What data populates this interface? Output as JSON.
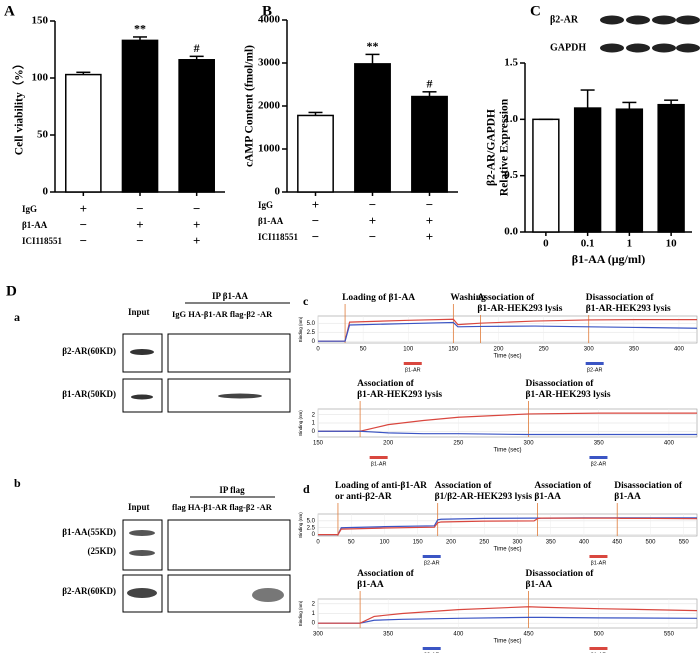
{
  "chart_data": [
    {
      "type": "bar",
      "panel": "A",
      "ylabel": "Cell viability（%）",
      "categories": [
        null,
        null,
        null
      ],
      "values": [
        103,
        133,
        116
      ],
      "errors": [
        2,
        3,
        3
      ],
      "bar_labels": [
        null,
        "**",
        "#"
      ],
      "colors": [
        "#ffffff",
        "#000000",
        "#000000"
      ],
      "ylim": [
        0,
        150
      ],
      "yticks": [
        0,
        50,
        100,
        150
      ],
      "treatments": [
        {
          "name": "IgG",
          "signs": [
            "+",
            "−",
            "−"
          ]
        },
        {
          "name": "β1-AA",
          "signs": [
            "−",
            "+",
            "+"
          ]
        },
        {
          "name": "ICI118551",
          "signs": [
            "−",
            "−",
            "+"
          ]
        }
      ]
    },
    {
      "type": "bar",
      "panel": "B",
      "ylabel": "cAMP Content (fmol/ml)",
      "categories": [
        null,
        null,
        null
      ],
      "values": [
        1780,
        2980,
        2220
      ],
      "errors": [
        70,
        220,
        110
      ],
      "bar_labels": [
        null,
        "**",
        "#"
      ],
      "colors": [
        "#ffffff",
        "#000000",
        "#000000"
      ],
      "ylim": [
        0,
        4000
      ],
      "yticks": [
        0,
        1000,
        2000,
        3000,
        4000
      ],
      "treatments": [
        {
          "name": "IgG",
          "signs": [
            "+",
            "−",
            "−"
          ]
        },
        {
          "name": "β1-AA",
          "signs": [
            "−",
            "+",
            "+"
          ]
        },
        {
          "name": "ICI118551",
          "signs": [
            "−",
            "−",
            "+"
          ]
        }
      ]
    },
    {
      "type": "bar",
      "panel": "C",
      "ylabel": [
        "β2-AR/GAPDH",
        "Relative Expression"
      ],
      "xlabel": "β1-AA (μg/ml)",
      "categories": [
        "0",
        "0.1",
        "1",
        "10"
      ],
      "values": [
        1.0,
        1.1,
        1.09,
        1.13
      ],
      "errors": [
        0,
        0.16,
        0.06,
        0.04
      ],
      "colors": [
        "#ffffff",
        "#000000",
        "#000000",
        "#000000"
      ],
      "ylim": [
        0,
        1.5
      ],
      "yticks": [
        {
          "value": 0,
          "label": "0.0"
        },
        0.5,
        {
          "value": 1,
          "label": "1.0"
        },
        1.5
      ],
      "blots": [
        "β2-AR",
        "GAPDH"
      ]
    },
    {
      "type": "line",
      "panel": "c",
      "xlabel": "Time (sec)",
      "ylabel": "Binding (nm)",
      "x": [
        0,
        30,
        35,
        100,
        150,
        155,
        180,
        240,
        300,
        360,
        420
      ],
      "series": [
        {
          "name": "β1-AR",
          "color": "#d9473f",
          "values": [
            0,
            0,
            5.3,
            5.8,
            6.1,
            4.6,
            5.0,
            5.6,
            5.9,
            6.0,
            6.0
          ]
        },
        {
          "name": "β2-AR",
          "color": "#3b55c4",
          "values": [
            0,
            0,
            4.5,
            4.9,
            5.2,
            4.0,
            4.1,
            4.2,
            4.0,
            3.8,
            3.6
          ]
        }
      ],
      "xlim": [
        0,
        420
      ],
      "xticks": [
        0,
        50,
        100,
        150,
        200,
        250,
        300,
        350,
        400
      ],
      "ylim": [
        -0.5,
        7
      ],
      "yticks": [
        0,
        2.5,
        {
          "value": 5,
          "label": "5.0"
        }
      ],
      "annotations": [
        {
          "x": 30,
          "text": [
            "Loading of β1-AA"
          ]
        },
        {
          "x": 150,
          "text": [
            "Washing"
          ]
        },
        {
          "x": 180,
          "text": [
            "Association of",
            "β1-AR-HEK293 lysis"
          ]
        },
        {
          "x": 300,
          "text": [
            "Disassociation of",
            "β1-AR-HEK293 lysis"
          ]
        }
      ]
    },
    {
      "type": "line",
      "xlabel": "Time (sec)",
      "ylabel": "Binding (nm)",
      "x": [
        150,
        180,
        190,
        200,
        225,
        250,
        300,
        350,
        420
      ],
      "series": [
        {
          "name": "β1-AR",
          "color": "#d9473f",
          "values": [
            0,
            0,
            0.4,
            0.8,
            1.3,
            1.7,
            2.1,
            2.2,
            2.2
          ]
        },
        {
          "name": "β2-AR",
          "color": "#3b55c4",
          "values": [
            0,
            0,
            -0.1,
            -0.2,
            -0.3,
            -0.3,
            -0.4,
            -0.4,
            -0.4
          ]
        }
      ],
      "xlim": [
        150,
        420
      ],
      "xticks": [
        150,
        200,
        250,
        300,
        350,
        400
      ],
      "ylim": [
        -0.7,
        2.7
      ],
      "yticks": [
        0,
        1,
        2
      ],
      "annotations": [
        {
          "x": 180,
          "text": [
            "Association of",
            "β1-AR-HEK293 lysis"
          ]
        },
        {
          "x": 300,
          "text": [
            "Disassociation of",
            "β1-AR-HEK293 lysis"
          ]
        }
      ]
    },
    {
      "type": "line",
      "panel": "d",
      "xlabel": "Time (sec)",
      "ylabel": "Binding (nm)",
      "x": [
        0,
        30,
        35,
        100,
        175,
        180,
        185,
        250,
        325,
        330,
        335,
        400,
        450,
        455,
        500,
        570
      ],
      "series": [
        {
          "name": "β2-AR",
          "color": "#3b55c4",
          "values": [
            0,
            0,
            2.5,
            2.9,
            3.2,
            5.4,
            5.6,
            5.9,
            6.0,
            6.0,
            6.0,
            6.1,
            6.1,
            6.1,
            6.1,
            6.1
          ]
        },
        {
          "name": "β1-AR",
          "color": "#d9473f",
          "values": [
            0,
            0,
            2.0,
            2.4,
            2.7,
            4.3,
            4.6,
            4.9,
            5.0,
            5.8,
            6.0,
            6.0,
            6.0,
            5.9,
            5.9,
            5.8
          ]
        }
      ],
      "xlim": [
        0,
        570
      ],
      "xticks": [
        0,
        50,
        100,
        150,
        200,
        250,
        300,
        350,
        400,
        450,
        500,
        550
      ],
      "ylim": [
        -0.5,
        7.5
      ],
      "yticks": [
        0,
        2.5,
        {
          "value": 5,
          "label": "5.0"
        }
      ],
      "annotations": [
        {
          "x": 30,
          "text": [
            "Loading of anti-β1-AR",
            "or anti-β2-AR"
          ]
        },
        {
          "x": 180,
          "text": [
            "Association of",
            "β1/β2-AR-HEK293 lysis"
          ]
        },
        {
          "x": 330,
          "text": [
            "Association of",
            "β1-AA"
          ]
        },
        {
          "x": 450,
          "text": [
            "Disassociation of",
            "β1-AA"
          ]
        }
      ]
    },
    {
      "type": "line",
      "xlabel": "Time (sec)",
      "ylabel": "Binding (nm)",
      "x": [
        300,
        330,
        340,
        360,
        400,
        450,
        460,
        500,
        570
      ],
      "series": [
        {
          "name": "β2-AR",
          "color": "#3b55c4",
          "values": [
            0,
            0,
            0.3,
            0.4,
            0.5,
            0.6,
            0.6,
            0.55,
            0.5
          ]
        },
        {
          "name": "β1-AR",
          "color": "#d9473f",
          "values": [
            0,
            0,
            0.7,
            1.0,
            1.4,
            1.7,
            1.65,
            1.5,
            1.3
          ]
        }
      ],
      "xlim": [
        300,
        570
      ],
      "xticks": [
        300,
        350,
        400,
        450,
        500,
        550
      ],
      "ylim": [
        -0.5,
        2.5
      ],
      "yticks": [
        0,
        1,
        2
      ],
      "annotations": [
        {
          "x": 330,
          "text": [
            "Association of",
            "β1-AA"
          ]
        },
        {
          "x": 450,
          "text": [
            "Disassociation of",
            "β1-AA"
          ]
        }
      ]
    }
  ],
  "panel_d": {
    "label": "D",
    "a": {
      "label": "a",
      "input": "Input",
      "ip": "IP  β1-AA",
      "lanes": "IgG  HA-β1-AR  flag-β2 -AR",
      "rows": [
        "β2-AR(60KD)",
        "β1-AR(50KD)"
      ]
    },
    "b": {
      "label": "b",
      "input": "Input",
      "ip": "IP  flag",
      "lanes": "flag  HA-β1-AR  flag-β2 -AR",
      "rows": [
        "β1-AA(55KD)",
        "(25KD)",
        "β2-AR(60KD)"
      ]
    }
  }
}
